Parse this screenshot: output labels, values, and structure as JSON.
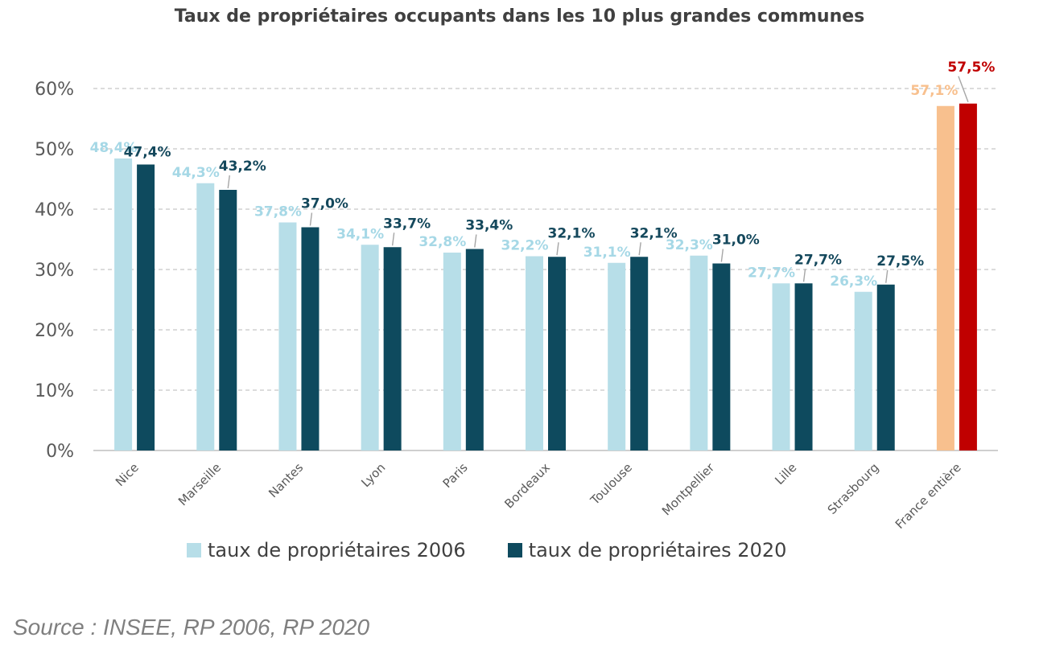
{
  "chart_data": {
    "type": "bar",
    "title": "Taux de propriétaires occupants dans les 10 plus grandes communes",
    "categories": [
      "Nice",
      "Marseille",
      "Nantes",
      "Lyon",
      "Paris",
      "Bordeaux",
      "Toulouse",
      "Montpellier",
      "Lille",
      "Strasbourg",
      "France entière"
    ],
    "series": [
      {
        "name": "taux de propriétaires 2006",
        "values": [
          48.4,
          44.3,
          37.8,
          34.1,
          32.8,
          32.2,
          31.1,
          32.3,
          27.7,
          26.3,
          57.1
        ],
        "labels": [
          "48,4%",
          "44,3%",
          "37,8%",
          "34,1%",
          "32,8%",
          "32,2%",
          "31,1%",
          "32,3%",
          "27,7%",
          "26,3%",
          "57,1%"
        ]
      },
      {
        "name": "taux de propriétaires 2020",
        "values": [
          47.4,
          43.2,
          37.0,
          33.7,
          33.4,
          32.1,
          32.1,
          31.0,
          27.7,
          27.5,
          57.5
        ],
        "labels": [
          "47,4%",
          "43,2%",
          "37,0%",
          "33,7%",
          "33,4%",
          "32,1%",
          "32,1%",
          "31,0%",
          "27,7%",
          "27,5%",
          "57,5%"
        ]
      }
    ],
    "highlight_colors": {
      "France entière": [
        "#F8C08E",
        "#C00000"
      ]
    },
    "colors": [
      "#B7DEE8",
      "#0E4A5E"
    ],
    "ylim": [
      0,
      60
    ],
    "yticks": [
      "0%",
      "10%",
      "20%",
      "30%",
      "40%",
      "50%",
      "60%"
    ],
    "grid": true,
    "legend": "bottom",
    "xlabel": "",
    "ylabel": ""
  },
  "legend": {
    "items": [
      {
        "label": "taux de propriétaires 2006",
        "color": "#B7DEE8"
      },
      {
        "label": "taux de propriétaires 2020",
        "color": "#0E4A5E"
      }
    ]
  },
  "source": "Source : INSEE, RP 2006, RP 2020"
}
